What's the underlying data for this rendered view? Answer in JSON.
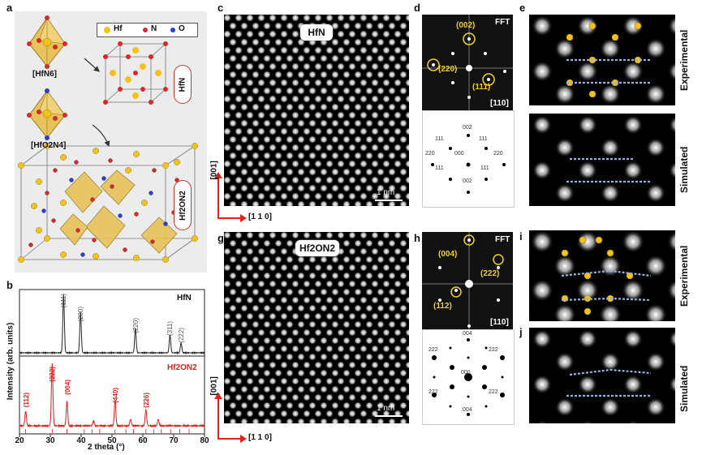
{
  "panels": {
    "a": "a",
    "b": "b",
    "c": "c",
    "d": "d",
    "e": "e",
    "g": "g",
    "h": "h",
    "i": "i",
    "j": "j"
  },
  "legend": {
    "hf": "Hf",
    "n": "N",
    "o": "O"
  },
  "colors": {
    "hf": "#f2c21b",
    "n": "#d42a2a",
    "o": "#2a40c8",
    "accent": "#e0201b",
    "oct": "#e8c25a"
  },
  "structure": {
    "hfn6": "[HfN6]",
    "hfo2n4": "[HfO2N4]",
    "hfn_label": "HfN",
    "hf2on2_label": "Hf2ON2"
  },
  "xrd": {
    "ylabel": "Intensity (arb. units)",
    "xlabel": "2 theta (°)",
    "xticks": [
      "20",
      "30",
      "40",
      "50",
      "60",
      "70",
      "80"
    ],
    "hfn_name": "HfN",
    "hf2on2_name": "Hf2ON2",
    "hfn_peaks": [
      "(111)",
      "(200)",
      "(220)",
      "(311)",
      "(222)"
    ],
    "hf2on2_peaks": [
      "(112)",
      "(222)",
      "(004)",
      "(440)",
      "(226)"
    ]
  },
  "images": {
    "c_tag": "HfN",
    "g_tag": "Hf2ON2",
    "scale": "1 nm",
    "axis_v": "[001]",
    "axis_h": "[1 1 0]"
  },
  "fft": {
    "title": "FFT",
    "zone": "[110]",
    "d_spots": [
      "(002)",
      "(220)",
      "(111)"
    ],
    "h_spots": [
      "(004)",
      "(222)",
      "(112)"
    ],
    "d_pattern": [
      "002",
      "111",
      "111",
      "220",
      "000",
      "220",
      "111",
      "111",
      "002"
    ],
    "h_pattern": [
      "004",
      "222",
      "222",
      "000",
      "222",
      "222",
      "004"
    ]
  },
  "side": {
    "exp": "Experimental",
    "sim": "Simulated"
  }
}
